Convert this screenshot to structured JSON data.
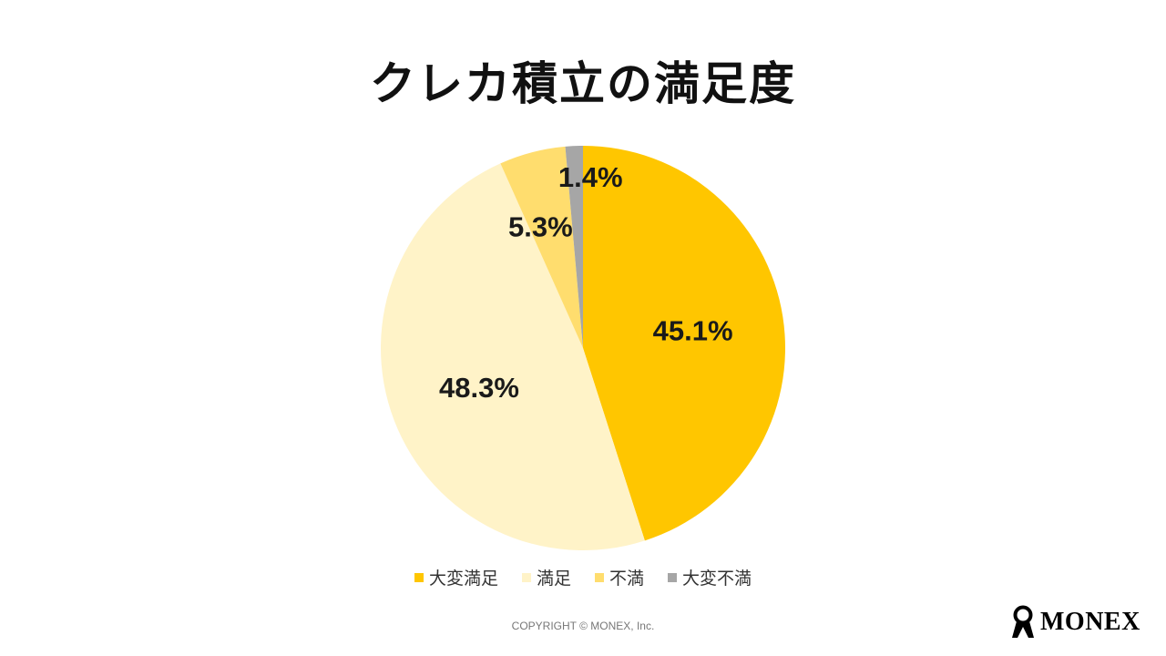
{
  "page": {
    "title": "クレカ積立の満足度"
  },
  "chart_data": {
    "type": "pie",
    "title": "クレカ積立の満足度",
    "start_angle": "12 o'clock, clockwise",
    "legend_position": "bottom",
    "slices": [
      {
        "name": "大変満足",
        "value": 45.1,
        "label": "45.1%",
        "color": "#FFC600"
      },
      {
        "name": "満足",
        "value": 48.3,
        "label": "48.3%",
        "color": "#FFF3C8"
      },
      {
        "name": "不満",
        "value": 5.3,
        "label": "5.3%",
        "color": "#FFDD6E"
      },
      {
        "name": "大変不満",
        "value": 1.4,
        "label": "1.4%",
        "color": "#A6A6A6"
      }
    ]
  },
  "footer": {
    "copyright": "COPYRIGHT © MONEX, Inc.",
    "logo_text": "MONEX",
    "logo_icon": "monex-figure-icon"
  }
}
